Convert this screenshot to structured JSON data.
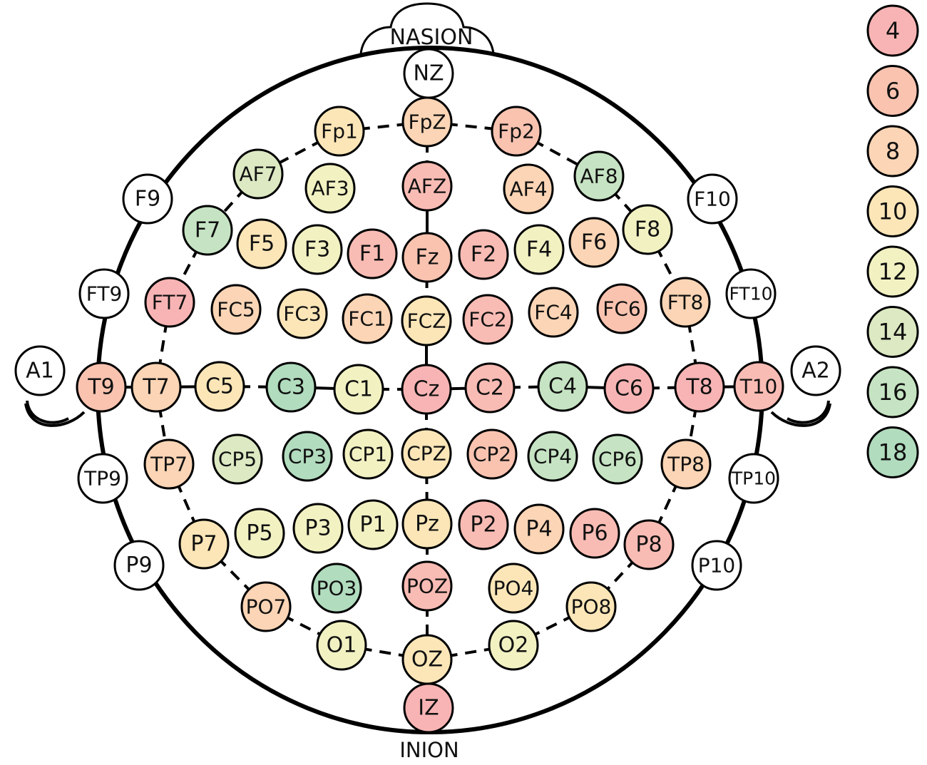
{
  "landmarks": {
    "nasion": "NASION",
    "inion": "INION"
  },
  "legend": [
    {
      "value": "4",
      "color": "#f8b4b4"
    },
    {
      "value": "6",
      "color": "#f9c3b0"
    },
    {
      "value": "8",
      "color": "#fbd5b5"
    },
    {
      "value": "10",
      "color": "#fce6b8"
    },
    {
      "value": "12",
      "color": "#f2f1c2"
    },
    {
      "value": "14",
      "color": "#dce9c2"
    },
    {
      "value": "16",
      "color": "#c6e4c3"
    },
    {
      "value": "18",
      "color": "#b1dcbe"
    }
  ],
  "electrodes": [
    {
      "label": "NZ",
      "color": "#ffffff"
    },
    {
      "label": "FpZ",
      "color": "#fbd5b5"
    },
    {
      "label": "Fp1",
      "color": "#fce6b8"
    },
    {
      "label": "Fp2",
      "color": "#f9c3b0"
    },
    {
      "label": "AF7",
      "color": "#dce9c2"
    },
    {
      "label": "AF3",
      "color": "#f2f1c2"
    },
    {
      "label": "AFZ",
      "color": "#f9bcb4"
    },
    {
      "label": "AF4",
      "color": "#fbd5b5"
    },
    {
      "label": "AF8",
      "color": "#c6e4c3"
    },
    {
      "label": "F9",
      "color": "#ffffff"
    },
    {
      "label": "F10",
      "color": "#ffffff"
    },
    {
      "label": "F7",
      "color": "#c6e4c3"
    },
    {
      "label": "F5",
      "color": "#fce6b8"
    },
    {
      "label": "F3",
      "color": "#f2f1c2"
    },
    {
      "label": "F1",
      "color": "#f9bcb4"
    },
    {
      "label": "Fz",
      "color": "#f9c3b0"
    },
    {
      "label": "F2",
      "color": "#f9bcb4"
    },
    {
      "label": "F4",
      "color": "#f2f1c2"
    },
    {
      "label": "F6",
      "color": "#fbd5b5"
    },
    {
      "label": "F8",
      "color": "#f2f1c2"
    },
    {
      "label": "FT9",
      "color": "#ffffff"
    },
    {
      "label": "FT10",
      "color": "#ffffff"
    },
    {
      "label": "FT7",
      "color": "#f8b4b4"
    },
    {
      "label": "FC5",
      "color": "#fbd5b5"
    },
    {
      "label": "FC3",
      "color": "#fce6b8"
    },
    {
      "label": "FC1",
      "color": "#fbd5b5"
    },
    {
      "label": "FCZ",
      "color": "#fce6b8"
    },
    {
      "label": "FC2",
      "color": "#f9bcb4"
    },
    {
      "label": "FC4",
      "color": "#fbd5b5"
    },
    {
      "label": "FC6",
      "color": "#f9c3b0"
    },
    {
      "label": "FT8",
      "color": "#fbd5b5"
    },
    {
      "label": "A1",
      "color": "#ffffff"
    },
    {
      "label": "A2",
      "color": "#ffffff"
    },
    {
      "label": "T9",
      "color": "#f9c3b0"
    },
    {
      "label": "T7",
      "color": "#fbd5b5"
    },
    {
      "label": "C5",
      "color": "#fce6b8"
    },
    {
      "label": "C3",
      "color": "#b1dcbe"
    },
    {
      "label": "C1",
      "color": "#f2f1c2"
    },
    {
      "label": "Cz",
      "color": "#f8b4b4"
    },
    {
      "label": "C2",
      "color": "#f9bcb4"
    },
    {
      "label": "C4",
      "color": "#c6e4c3"
    },
    {
      "label": "C6",
      "color": "#f8b4b4"
    },
    {
      "label": "T8",
      "color": "#f8b4b4"
    },
    {
      "label": "T10",
      "color": "#f9bcb4"
    },
    {
      "label": "TP9",
      "color": "#ffffff"
    },
    {
      "label": "TP10",
      "color": "#ffffff"
    },
    {
      "label": "TP7",
      "color": "#fbd5b5"
    },
    {
      "label": "CP5",
      "color": "#dce9c2"
    },
    {
      "label": "CP3",
      "color": "#b1dcbe"
    },
    {
      "label": "CP1",
      "color": "#f2f1c2"
    },
    {
      "label": "CPZ",
      "color": "#fce6b8"
    },
    {
      "label": "CP2",
      "color": "#f9c3b0"
    },
    {
      "label": "CP4",
      "color": "#c6e4c3"
    },
    {
      "label": "CP6",
      "color": "#c6e4c3"
    },
    {
      "label": "TP8",
      "color": "#fbd5b5"
    },
    {
      "label": "P9",
      "color": "#ffffff"
    },
    {
      "label": "P10",
      "color": "#ffffff"
    },
    {
      "label": "P7",
      "color": "#fce6b8"
    },
    {
      "label": "P5",
      "color": "#f2f1c2"
    },
    {
      "label": "P3",
      "color": "#f2f1c2"
    },
    {
      "label": "P1",
      "color": "#f2f1c2"
    },
    {
      "label": "Pz",
      "color": "#fce6b8"
    },
    {
      "label": "P2",
      "color": "#f9bcb4"
    },
    {
      "label": "P4",
      "color": "#fbd5b5"
    },
    {
      "label": "P6",
      "color": "#f9bcb4"
    },
    {
      "label": "P8",
      "color": "#f9bcb4"
    },
    {
      "label": "PO7",
      "color": "#fbd5b5"
    },
    {
      "label": "PO3",
      "color": "#b1dcbe"
    },
    {
      "label": "POZ",
      "color": "#f9bcb4"
    },
    {
      "label": "PO4",
      "color": "#fce6b8"
    },
    {
      "label": "PO8",
      "color": "#fce6b8"
    },
    {
      "label": "O1",
      "color": "#f2f1c2"
    },
    {
      "label": "OZ",
      "color": "#fce6b8"
    },
    {
      "label": "O2",
      "color": "#f2f1c2"
    },
    {
      "label": "IZ",
      "color": "#f8b4b4"
    }
  ]
}
